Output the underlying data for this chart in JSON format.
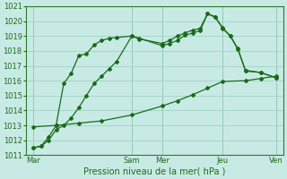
{
  "bg_color": "#c8eae4",
  "grid_color": "#a0d0c8",
  "line_color": "#1a6b1a",
  "xlabel": "Pression niveau de la mer( hPa )",
  "ylim": [
    1011,
    1021
  ],
  "xlim": [
    0,
    34
  ],
  "xtick_positions": [
    1,
    14,
    18,
    26,
    33
  ],
  "xtick_labels": [
    "Mar",
    "Sam",
    "Mer",
    "Jeu",
    "Ven"
  ],
  "s1_x": [
    1,
    2,
    3,
    4,
    5,
    6,
    7,
    8,
    9,
    10,
    11,
    12,
    14,
    15,
    18,
    19,
    20,
    21,
    22,
    23,
    24,
    25,
    26,
    27,
    28,
    29,
    31,
    33
  ],
  "s1_y": [
    1011.5,
    1011.6,
    1012.2,
    1013.0,
    1015.8,
    1016.5,
    1017.7,
    1017.8,
    1018.4,
    1018.7,
    1018.85,
    1018.9,
    1019.0,
    1018.85,
    1018.35,
    1018.5,
    1018.7,
    1019.05,
    1019.2,
    1019.35,
    1020.5,
    1020.3,
    1019.5,
    1019.0,
    1018.15,
    1016.65,
    1016.55,
    1016.2
  ],
  "s2_x": [
    1,
    2,
    3,
    4,
    5,
    6,
    7,
    8,
    9,
    10,
    11,
    12,
    14,
    15,
    18,
    19,
    20,
    21,
    22,
    23,
    24,
    25,
    26,
    27,
    28,
    29,
    31,
    33
  ],
  "s2_y": [
    1011.5,
    1011.6,
    1012.0,
    1012.7,
    1013.0,
    1013.5,
    1014.2,
    1015.0,
    1015.8,
    1016.3,
    1016.8,
    1017.3,
    1019.0,
    1018.8,
    1018.5,
    1018.7,
    1019.0,
    1019.2,
    1019.4,
    1019.5,
    1020.5,
    1020.25,
    1019.55,
    1019.0,
    1018.1,
    1016.7,
    1016.55,
    1016.2
  ],
  "s3_x": [
    1,
    4,
    7,
    10,
    14,
    18,
    20,
    22,
    24,
    26,
    29,
    31,
    33
  ],
  "s3_y": [
    1012.9,
    1013.0,
    1013.15,
    1013.3,
    1013.7,
    1014.3,
    1014.65,
    1015.05,
    1015.5,
    1015.95,
    1016.0,
    1016.15,
    1016.3
  ],
  "marker": "D",
  "markersize": 2.0,
  "linewidth": 0.9,
  "fontsize_ticks": 6,
  "fontsize_xlabel": 7
}
